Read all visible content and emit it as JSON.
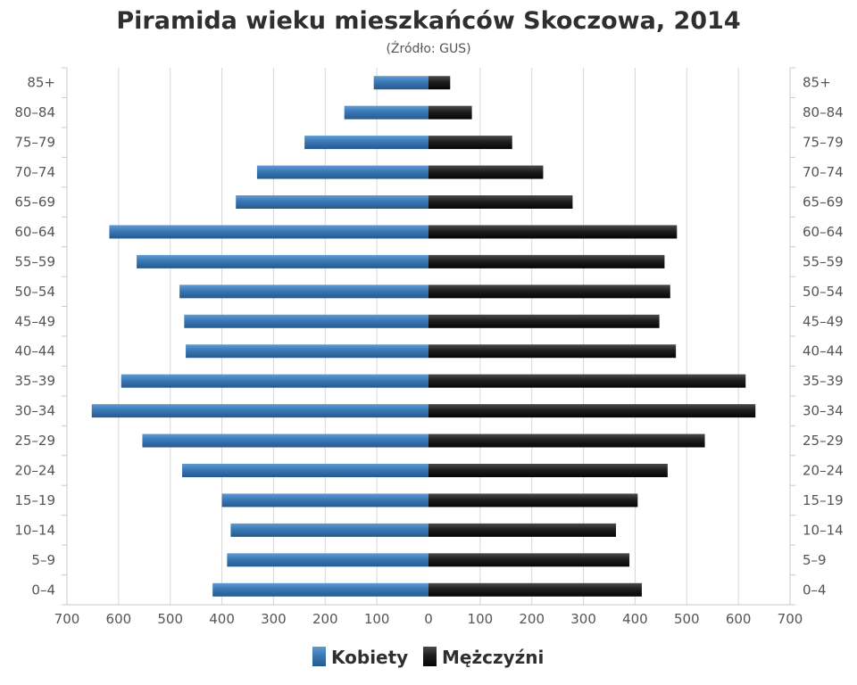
{
  "chart_data": {
    "type": "bar",
    "orientation": "horizontal",
    "layout": "population-pyramid",
    "title": "Piramida wieku mieszkańców Skoczowa, 2014",
    "subtitle": "(Źródło: GUS)",
    "categories": [
      "0–4",
      "5–9",
      "10–14",
      "15–19",
      "20–24",
      "25–29",
      "30–34",
      "35–39",
      "40–44",
      "45–49",
      "50–54",
      "55–59",
      "60–64",
      "65–69",
      "70–74",
      "75–79",
      "80–84",
      "85+"
    ],
    "series": [
      {
        "name": "Kobiety",
        "side": "left",
        "color": "#3a78b5",
        "values": [
          418,
          390,
          383,
          400,
          477,
          554,
          652,
          595,
          470,
          473,
          482,
          565,
          618,
          373,
          332,
          240,
          163,
          106
        ]
      },
      {
        "name": "Mężczyźni",
        "side": "right",
        "color": "#1a1a1a",
        "values": [
          413,
          389,
          363,
          405,
          463,
          535,
          633,
          614,
          479,
          447,
          468,
          457,
          481,
          279,
          222,
          162,
          84,
          42
        ]
      }
    ],
    "xlim": [
      -700,
      700
    ],
    "xticks": [
      {
        "value": -700,
        "label": "700"
      },
      {
        "value": -600,
        "label": "600"
      },
      {
        "value": -500,
        "label": "500"
      },
      {
        "value": -400,
        "label": "400"
      },
      {
        "value": -300,
        "label": "300"
      },
      {
        "value": -200,
        "label": "200"
      },
      {
        "value": -100,
        "label": "100"
      },
      {
        "value": 0,
        "label": "0"
      },
      {
        "value": 100,
        "label": "100"
      },
      {
        "value": 200,
        "label": "200"
      },
      {
        "value": 300,
        "label": "300"
      },
      {
        "value": 400,
        "label": "400"
      },
      {
        "value": 500,
        "label": "500"
      },
      {
        "value": 600,
        "label": "600"
      },
      {
        "value": 700,
        "label": "700"
      }
    ],
    "xlabel": "",
    "ylabel": "",
    "grid": true,
    "legend": "bottom-center"
  }
}
